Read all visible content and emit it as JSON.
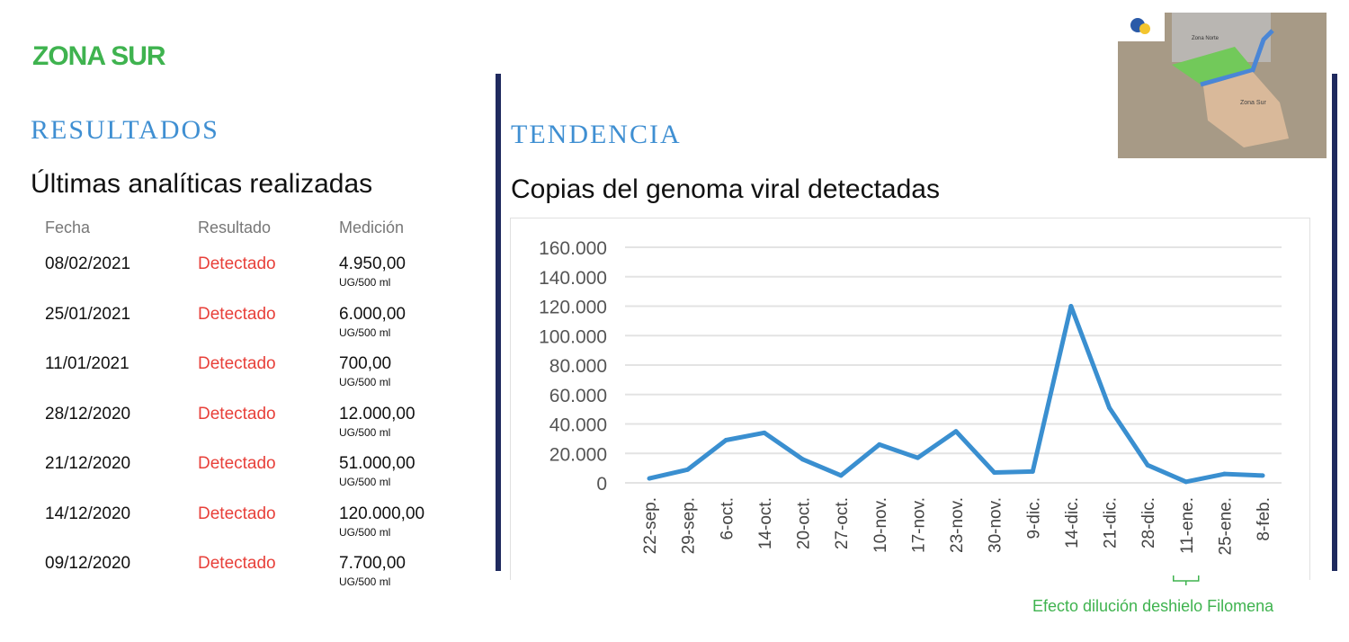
{
  "header": {
    "zone_title": "ZONA SUR"
  },
  "results": {
    "section_title": "RESULTADOS",
    "subtitle": "Últimas analíticas realizadas",
    "columns": [
      "Fecha",
      "Resultado",
      "Medición"
    ],
    "rows": [
      {
        "date": "08/02/2021",
        "result": "Detectado",
        "value": "4.950,00",
        "unit": "UG/500 ml"
      },
      {
        "date": "25/01/2021",
        "result": "Detectado",
        "value": "6.000,00",
        "unit": "UG/500 ml"
      },
      {
        "date": "11/01/2021",
        "result": "Detectado",
        "value": "700,00",
        "unit": "UG/500 ml"
      },
      {
        "date": "28/12/2020",
        "result": "Detectado",
        "value": "12.000,00",
        "unit": "UG/500 ml"
      },
      {
        "date": "21/12/2020",
        "result": "Detectado",
        "value": "51.000,00",
        "unit": "UG/500 ml"
      },
      {
        "date": "14/12/2020",
        "result": "Detectado",
        "value": "120.000,00",
        "unit": "UG/500 ml"
      },
      {
        "date": "09/12/2020",
        "result": "Detectado",
        "value": "7.700,00",
        "unit": "UG/500 ml"
      }
    ]
  },
  "trend": {
    "section_title": "TENDENCIA",
    "subtitle": "Copias del genoma viral detectadas"
  },
  "map": {
    "labels": [
      "Zona Norte",
      "Zona Sur"
    ]
  },
  "colors": {
    "line": "#3a8fd0",
    "accent_green": "#3fb34f",
    "detected_red": "#e8403a",
    "divider": "#1f2a5e"
  },
  "chart_data": {
    "type": "line",
    "title": "Copias del genoma viral detectadas",
    "categories": [
      "22-sep.",
      "29-sep.",
      "6-oct.",
      "14-oct.",
      "20-oct.",
      "27-oct.",
      "10-nov.",
      "17-nov.",
      "23-nov.",
      "30-nov.",
      "9-dic.",
      "14-dic.",
      "21-dic.",
      "28-dic.",
      "11-ene.",
      "25-ene.",
      "8-feb."
    ],
    "series": [
      {
        "name": "Copias",
        "values": [
          3000,
          9000,
          29000,
          34000,
          16000,
          5000,
          26000,
          17000,
          35000,
          7000,
          7700,
          120000,
          51000,
          12000,
          700,
          6000,
          4950
        ]
      }
    ],
    "ylim": [
      0,
      160000
    ],
    "yticks": [
      0,
      20000,
      40000,
      60000,
      80000,
      100000,
      120000,
      140000,
      160000
    ],
    "ytick_labels": [
      "0",
      "20.000",
      "40.000",
      "60.000",
      "80.000",
      "100.000",
      "120.000",
      "140.000",
      "160.000"
    ],
    "grid": true,
    "annotation": {
      "text": "Efecto dilución deshielo Filomena",
      "category": "11-ene."
    }
  }
}
